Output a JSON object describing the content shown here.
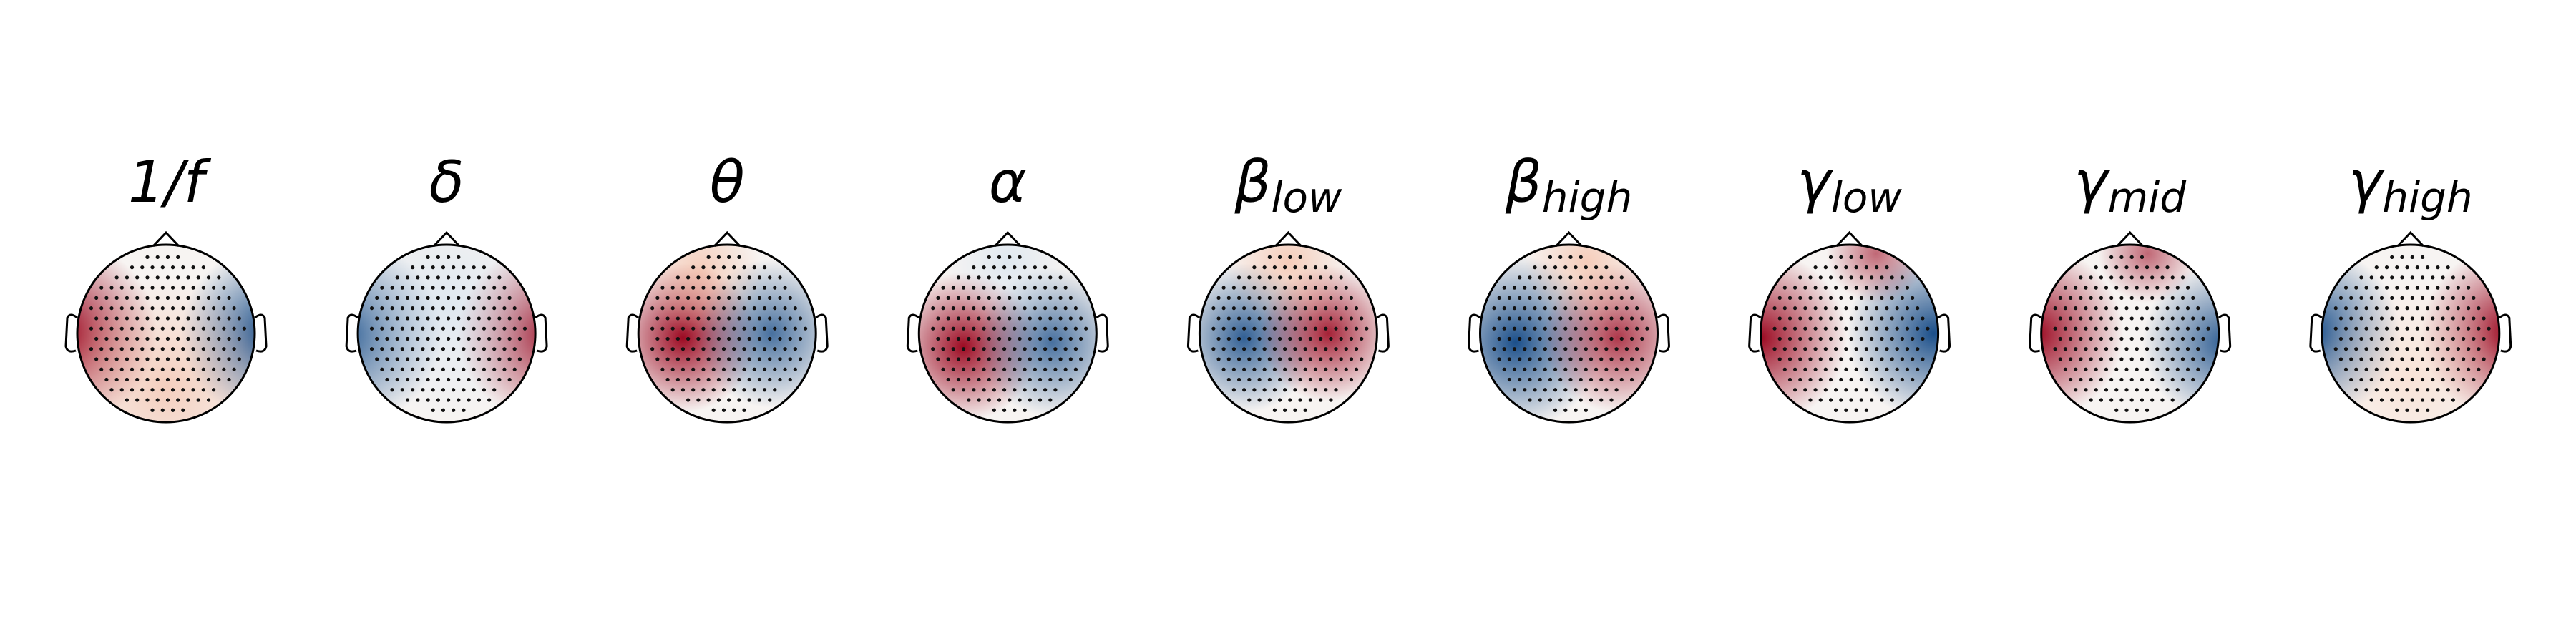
{
  "panels": [
    {
      "symbol": "1/f"
    },
    {
      "symbol": "δ"
    },
    {
      "symbol": "θ"
    },
    {
      "symbol": "α"
    },
    {
      "symbol": "β",
      "subscript": "low"
    },
    {
      "symbol": "β",
      "subscript": "high"
    },
    {
      "symbol": "γ",
      "subscript": "low"
    },
    {
      "symbol": "γ",
      "subscript": "mid"
    },
    {
      "symbol": "γ",
      "subscript": "high"
    }
  ]
}
